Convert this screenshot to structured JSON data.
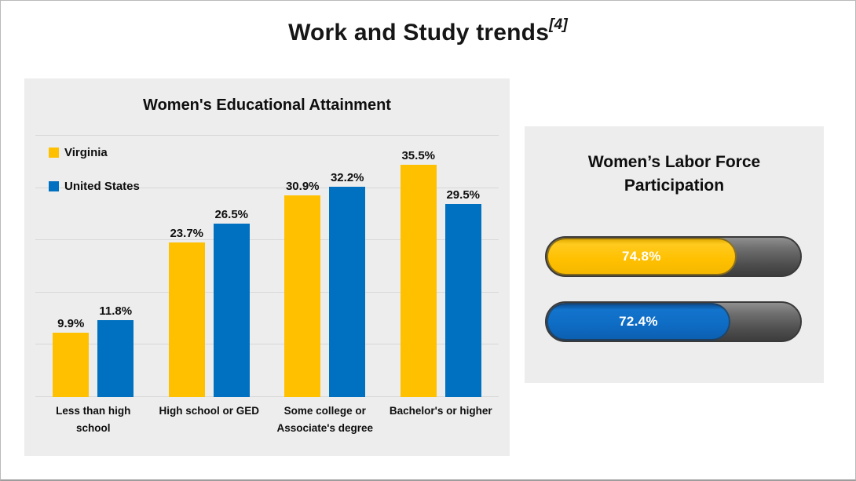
{
  "slide": {
    "title": "Work and Study trends",
    "citation": "[4]"
  },
  "colors": {
    "virginia_gold": "#FFC000",
    "united_states_blue": "#0070C0",
    "panel_background": "#EDEDED",
    "pill_track_gray": "#4B4B4B",
    "pill_label_text": "#FFFFFF",
    "gridline": "#D8D8D8",
    "text": "#111111"
  },
  "chart_data": [
    {
      "type": "bar",
      "title": "Women's Educational Attainment",
      "categories": [
        "Less than high school",
        "High school or GED",
        "Some college or Associate's degree",
        "Bachelor's or higher"
      ],
      "category_label_lines": [
        [
          "Less than high",
          "school"
        ],
        [
          "High school or GED"
        ],
        [
          "Some college or",
          "Associate's degree"
        ],
        [
          "Bachelor's or higher"
        ]
      ],
      "series": [
        {
          "name": "Virginia",
          "color": "#FFC000",
          "values": [
            9.9,
            23.7,
            30.9,
            35.5
          ],
          "labels": [
            "9.9%",
            "23.7%",
            "30.9%",
            "35.5%"
          ]
        },
        {
          "name": "United States",
          "color": "#0070C0",
          "values": [
            11.8,
            26.5,
            32.2,
            29.5
          ],
          "labels": [
            "11.8%",
            "26.5%",
            "32.2%",
            "29.5%"
          ]
        }
      ],
      "xlabel": "",
      "ylabel": "",
      "ylim": [
        0,
        40
      ],
      "gridline_step": 8,
      "grid": true,
      "legend_position": "top-left"
    },
    {
      "type": "bar",
      "subtype": "progress-pill",
      "title": "Women’s Labor Force Participation",
      "series": [
        {
          "name": "Virginia",
          "value": 74.8,
          "label": "74.8%",
          "color": "#FFC000"
        },
        {
          "name": "United States",
          "value": 72.4,
          "label": "72.4%",
          "color": "#0070C0"
        }
      ],
      "xlim": [
        0,
        100
      ]
    }
  ]
}
